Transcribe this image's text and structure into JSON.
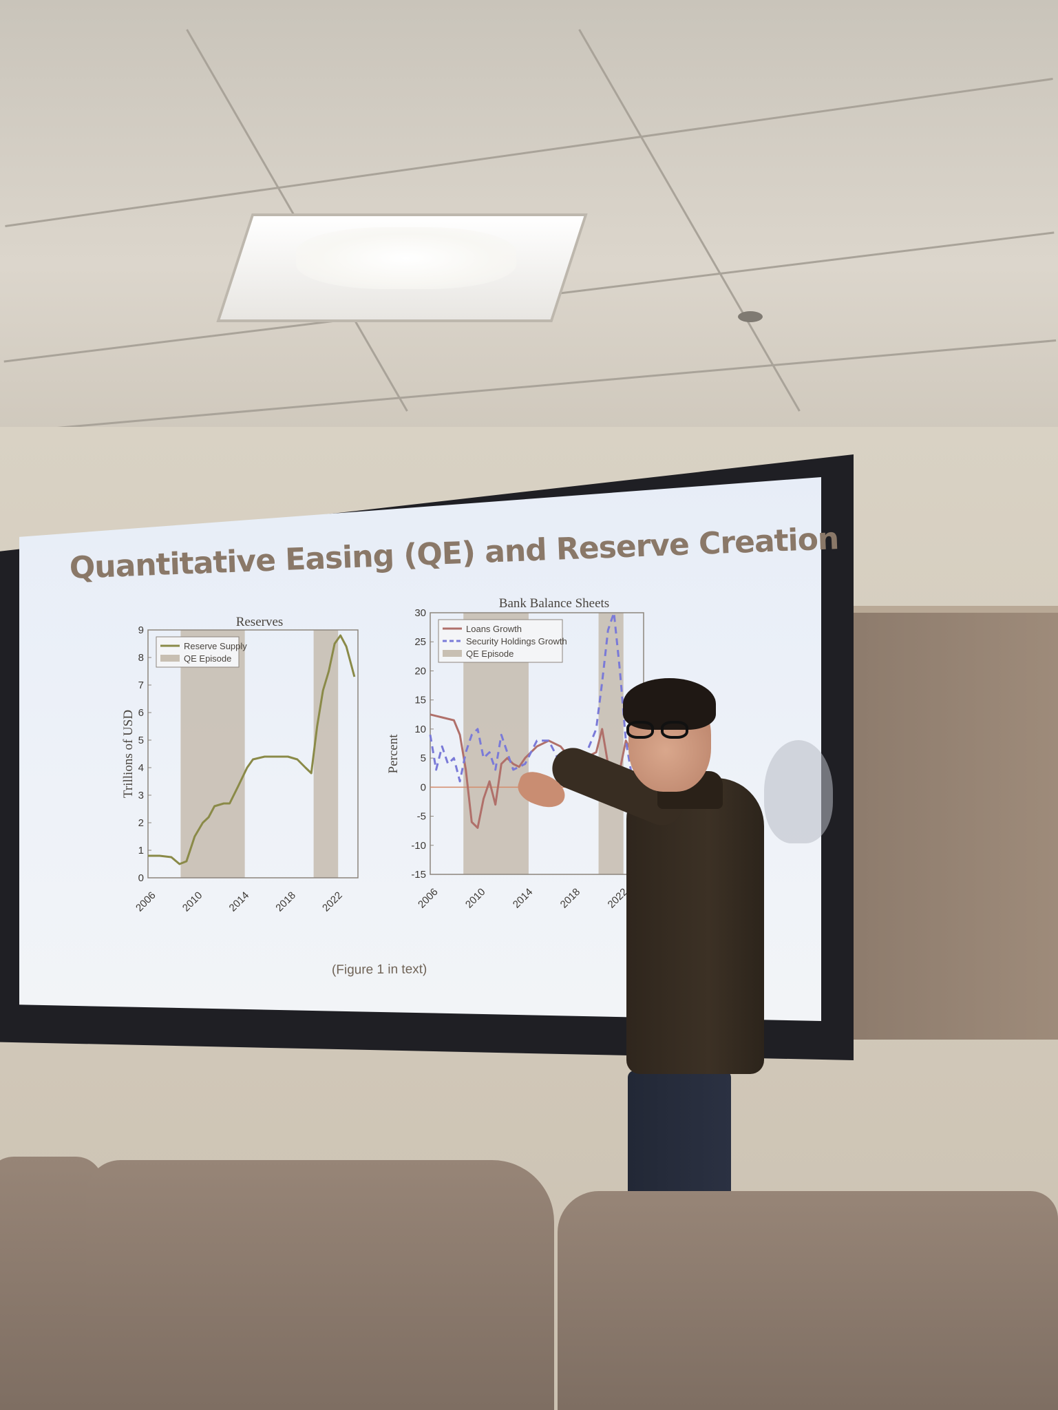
{
  "slide": {
    "title": "Quantitative Easing (QE) and Reserve Creation",
    "caption": "(Figure 1 in text)"
  },
  "chart_data": [
    {
      "type": "line",
      "title": "Reserves",
      "ylabel": "Trillions of USD",
      "xlabel": "",
      "xlim": [
        2006,
        2024
      ],
      "ylim": [
        0,
        9
      ],
      "x_ticks": [
        "2006",
        "2010",
        "2014",
        "2018",
        "2022"
      ],
      "y_ticks": [
        "0",
        "1",
        "2",
        "3",
        "4",
        "5",
        "6",
        "7",
        "8",
        "9"
      ],
      "legend": [
        "Reserve Supply",
        "QE Episode"
      ],
      "legend_position": "top-left",
      "qe_episodes": [
        [
          2008.8,
          2014.3
        ],
        [
          2020.2,
          2022.3
        ]
      ],
      "series": [
        {
          "name": "Reserve Supply",
          "color": "#8a8a48",
          "x": [
            2006,
            2007,
            2008,
            2008.7,
            2009.3,
            2010,
            2010.7,
            2011.2,
            2011.7,
            2012.5,
            2013,
            2013.7,
            2014.5,
            2015,
            2016,
            2017,
            2018,
            2018.8,
            2019.5,
            2020,
            2020.5,
            2021,
            2021.5,
            2022,
            2022.5,
            2023,
            2023.7
          ],
          "values": [
            0.8,
            0.8,
            0.75,
            0.5,
            0.6,
            1.5,
            2.0,
            2.2,
            2.6,
            2.7,
            2.7,
            3.3,
            4.0,
            4.3,
            4.4,
            4.4,
            4.4,
            4.3,
            4.0,
            3.8,
            5.5,
            6.8,
            7.5,
            8.5,
            8.8,
            8.4,
            7.3
          ]
        }
      ]
    },
    {
      "type": "line",
      "title": "Bank Balance Sheets",
      "ylabel": "Percent",
      "xlabel": "",
      "xlim": [
        2006,
        2024
      ],
      "ylim": [
        -15,
        30
      ],
      "x_ticks": [
        "2006",
        "2010",
        "2014",
        "2018",
        "2022"
      ],
      "y_ticks": [
        "-15",
        "-10",
        "-5",
        "0",
        "5",
        "10",
        "15",
        "20",
        "25",
        "30"
      ],
      "legend": [
        "Loans Growth",
        "Security Holdings Growth",
        "QE Episode"
      ],
      "legend_position": "top-left",
      "qe_episodes": [
        [
          2008.8,
          2014.3
        ],
        [
          2020.2,
          2022.3
        ]
      ],
      "series": [
        {
          "name": "Loans Growth",
          "color": "#b0706a",
          "x": [
            2006,
            2007,
            2008,
            2008.5,
            2009,
            2009.5,
            2010,
            2010.5,
            2011,
            2011.5,
            2012,
            2012.5,
            2013,
            2013.5,
            2014,
            2015,
            2016,
            2017,
            2018,
            2019,
            2020,
            2020.5,
            2021,
            2021.5,
            2022,
            2022.5,
            2023
          ],
          "values": [
            12.5,
            12,
            11.5,
            9,
            3,
            -6,
            -7,
            -2,
            1,
            -3,
            4,
            5,
            4,
            3.5,
            5,
            7,
            8,
            7,
            4.5,
            5,
            6,
            10,
            4,
            -2,
            3,
            8,
            6
          ]
        },
        {
          "name": "Security Holdings Growth",
          "color": "#7a7ad8",
          "x": [
            2006,
            2006.5,
            2007,
            2007.5,
            2008,
            2008.5,
            2009,
            2009.5,
            2010,
            2010.5,
            2011,
            2011.5,
            2012,
            2012.5,
            2013,
            2014,
            2015,
            2016,
            2017,
            2018,
            2019,
            2020,
            2020.5,
            2021,
            2021.5,
            2022,
            2022.5,
            2023
          ],
          "values": [
            9,
            3,
            7,
            4,
            5,
            1,
            6,
            9,
            10,
            5,
            6,
            3,
            9,
            6,
            3,
            4,
            8,
            8,
            4,
            2,
            5,
            10,
            18,
            27,
            30,
            20,
            8,
            2
          ]
        }
      ]
    }
  ]
}
